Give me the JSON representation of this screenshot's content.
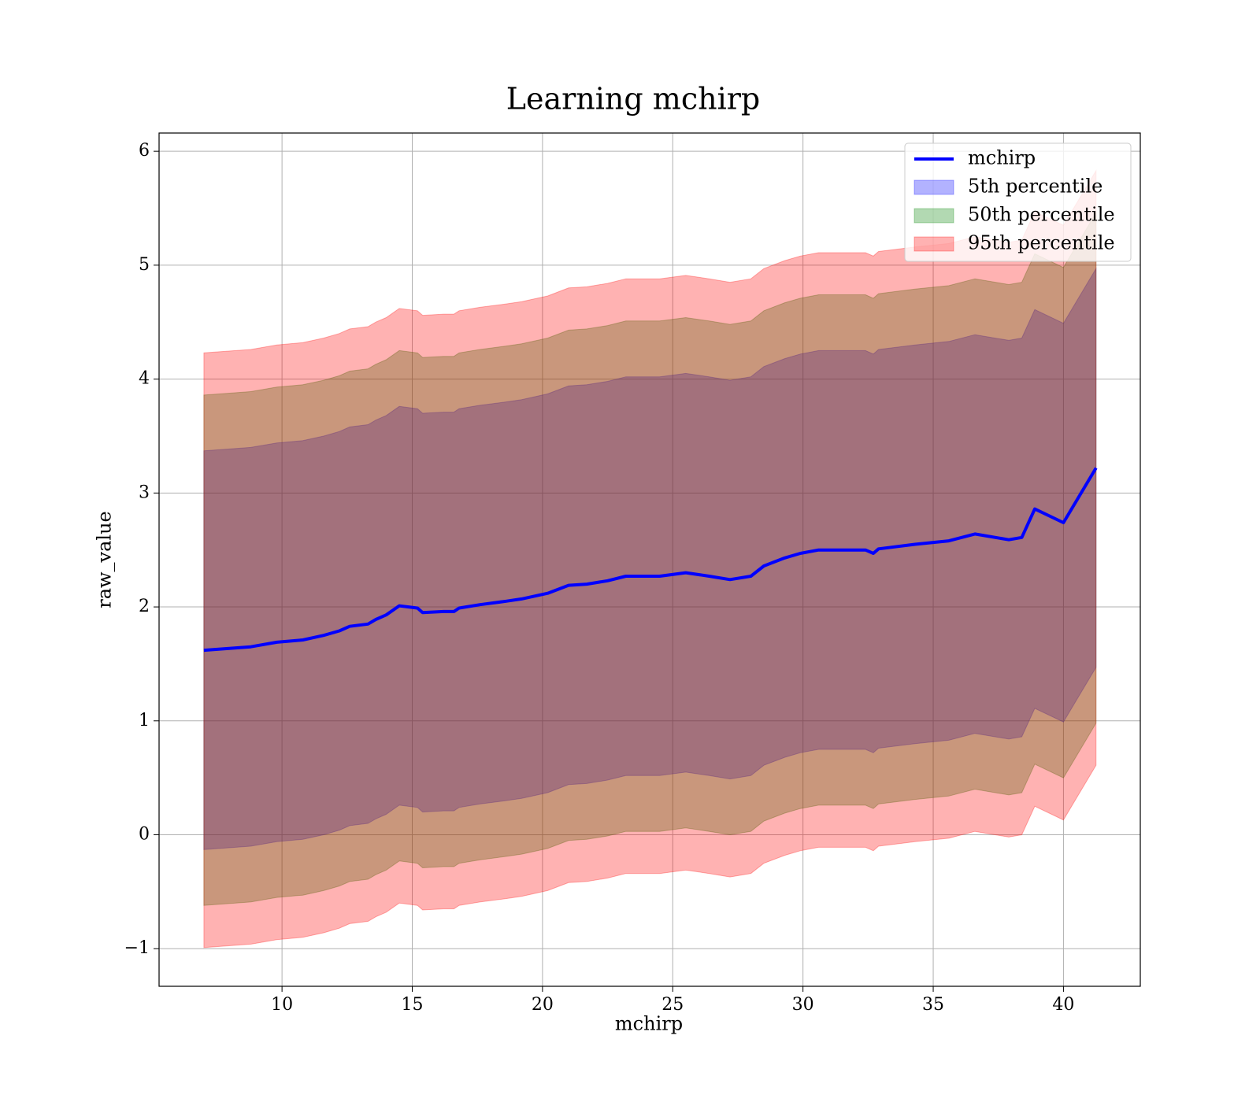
{
  "chart_data": {
    "type": "line",
    "title": "Learning mchirp",
    "x_label": "mchirp",
    "y_label": "raw_value",
    "x": [
      7.0,
      8.8,
      9.8,
      10.8,
      11.6,
      12.2,
      12.6,
      13.3,
      13.6,
      14.0,
      14.5,
      15.2,
      15.4,
      16.2,
      16.6,
      16.8,
      17.6,
      18.6,
      19.2,
      20.2,
      21.0,
      21.7,
      22.5,
      23.2,
      24.5,
      25.5,
      26.4,
      27.2,
      28.0,
      28.5,
      29.3,
      29.9,
      30.6,
      32.4,
      32.7,
      32.9,
      34.3,
      35.6,
      36.6,
      37.9,
      38.4,
      38.9,
      40.0,
      41.25
    ],
    "series": [
      {
        "name": "mchirp",
        "color": "#0000ff",
        "values": [
          1.62,
          1.65,
          1.69,
          1.71,
          1.75,
          1.79,
          1.83,
          1.85,
          1.89,
          1.93,
          2.01,
          1.99,
          1.95,
          1.96,
          1.96,
          1.99,
          2.02,
          2.05,
          2.07,
          2.12,
          2.19,
          2.2,
          2.23,
          2.27,
          2.27,
          2.3,
          2.27,
          2.24,
          2.27,
          2.36,
          2.43,
          2.47,
          2.5,
          2.5,
          2.47,
          2.51,
          2.55,
          2.58,
          2.64,
          2.59,
          2.61,
          2.86,
          2.74,
          3.22
        ]
      }
    ],
    "bands": [
      {
        "name": "5th percentile",
        "color": "#0000ff",
        "opacity": 0.3,
        "lower": [
          -0.13,
          -0.1,
          -0.06,
          -0.04,
          0.0,
          0.04,
          0.08,
          0.1,
          0.14,
          0.18,
          0.26,
          0.24,
          0.2,
          0.21,
          0.21,
          0.24,
          0.27,
          0.3,
          0.32,
          0.37,
          0.44,
          0.45,
          0.48,
          0.52,
          0.52,
          0.55,
          0.52,
          0.49,
          0.52,
          0.61,
          0.68,
          0.72,
          0.75,
          0.75,
          0.72,
          0.76,
          0.8,
          0.83,
          0.89,
          0.84,
          0.86,
          1.11,
          0.99,
          1.47
        ],
        "upper": [
          3.37,
          3.4,
          3.44,
          3.46,
          3.5,
          3.54,
          3.58,
          3.6,
          3.64,
          3.68,
          3.76,
          3.74,
          3.7,
          3.71,
          3.71,
          3.74,
          3.77,
          3.8,
          3.82,
          3.87,
          3.94,
          3.95,
          3.98,
          4.02,
          4.02,
          4.05,
          4.02,
          3.99,
          4.02,
          4.11,
          4.18,
          4.22,
          4.25,
          4.25,
          4.22,
          4.26,
          4.3,
          4.33,
          4.39,
          4.34,
          4.36,
          4.61,
          4.49,
          4.97
        ]
      },
      {
        "name": "50th percentile",
        "color": "#008000",
        "opacity": 0.3,
        "lower": [
          -0.62,
          -0.59,
          -0.55,
          -0.53,
          -0.49,
          -0.45,
          -0.41,
          -0.39,
          -0.35,
          -0.31,
          -0.23,
          -0.25,
          -0.29,
          -0.28,
          -0.28,
          -0.25,
          -0.22,
          -0.19,
          -0.17,
          -0.12,
          -0.05,
          -0.04,
          -0.01,
          0.03,
          0.03,
          0.06,
          0.03,
          0.0,
          0.03,
          0.12,
          0.19,
          0.23,
          0.26,
          0.26,
          0.23,
          0.27,
          0.31,
          0.34,
          0.4,
          0.35,
          0.37,
          0.62,
          0.5,
          0.98
        ],
        "upper": [
          3.86,
          3.89,
          3.93,
          3.95,
          3.99,
          4.03,
          4.07,
          4.09,
          4.13,
          4.17,
          4.25,
          4.23,
          4.19,
          4.2,
          4.2,
          4.23,
          4.26,
          4.29,
          4.31,
          4.36,
          4.43,
          4.44,
          4.47,
          4.51,
          4.51,
          4.54,
          4.51,
          4.48,
          4.51,
          4.6,
          4.67,
          4.71,
          4.74,
          4.74,
          4.71,
          4.75,
          4.79,
          4.82,
          4.88,
          4.83,
          4.85,
          5.1,
          4.98,
          5.46
        ]
      },
      {
        "name": "95th percentile",
        "color": "#ff0000",
        "opacity": 0.3,
        "lower": [
          -0.99,
          -0.96,
          -0.92,
          -0.9,
          -0.86,
          -0.82,
          -0.78,
          -0.76,
          -0.72,
          -0.68,
          -0.6,
          -0.62,
          -0.66,
          -0.65,
          -0.65,
          -0.62,
          -0.59,
          -0.56,
          -0.54,
          -0.49,
          -0.42,
          -0.41,
          -0.38,
          -0.34,
          -0.34,
          -0.31,
          -0.34,
          -0.37,
          -0.34,
          -0.25,
          -0.18,
          -0.14,
          -0.11,
          -0.11,
          -0.14,
          -0.1,
          -0.06,
          -0.03,
          0.03,
          -0.02,
          0.0,
          0.25,
          0.13,
          0.61
        ],
        "upper": [
          4.23,
          4.26,
          4.3,
          4.32,
          4.36,
          4.4,
          4.44,
          4.46,
          4.5,
          4.54,
          4.62,
          4.6,
          4.56,
          4.57,
          4.57,
          4.6,
          4.63,
          4.66,
          4.68,
          4.73,
          4.8,
          4.81,
          4.84,
          4.88,
          4.88,
          4.91,
          4.88,
          4.85,
          4.88,
          4.97,
          5.04,
          5.08,
          5.11,
          5.11,
          5.08,
          5.12,
          5.16,
          5.19,
          5.25,
          5.2,
          5.22,
          5.47,
          5.35,
          5.83
        ]
      }
    ],
    "xlim": [
      5.28,
      42.95
    ],
    "ylim": [
      -1.33,
      6.16
    ],
    "xticks": [
      10,
      15,
      20,
      25,
      30,
      35,
      40
    ],
    "yticks": [
      {
        "value": -1,
        "label": "−1"
      },
      0,
      1,
      2,
      3,
      4,
      5,
      6
    ],
    "grid": true,
    "legend": "upper right"
  }
}
